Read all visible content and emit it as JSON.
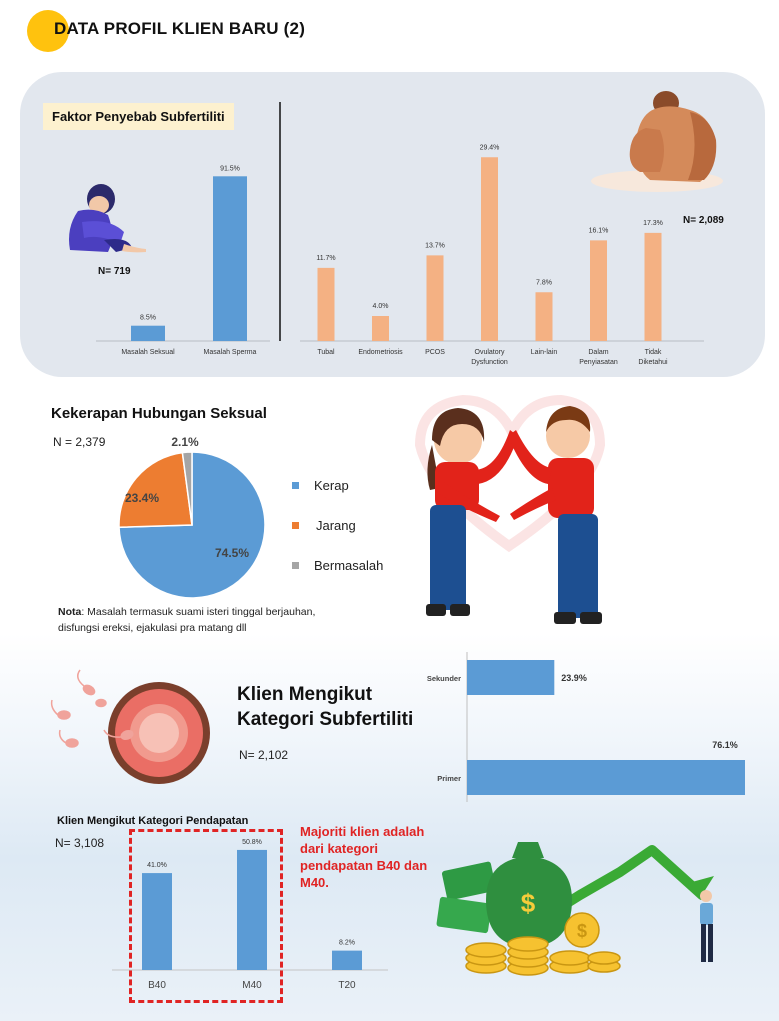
{
  "page": {
    "title": "DATA PROFIL KLIEN BARU (2)"
  },
  "colors": {
    "blue": "#5b9bd5",
    "orange": "#ed7d31",
    "peach": "#f4b183",
    "grey": "#a5a5a5",
    "red": "#e02424",
    "accent": "#ffc20e"
  },
  "icons": [
    "sad-man-illustration-icon",
    "sad-woman-illustration-icon",
    "heart-couple-illustration-icon",
    "sperm-egg-illustration-icon",
    "money-growth-illustration-icon"
  ],
  "chart_data": [
    {
      "id": "faktor-lelaki",
      "type": "bar",
      "title": "Faktor Penyebab Subfertiliti",
      "n_label": "N= 719",
      "categories": [
        "Masalah Seksual",
        "Masalah Sperma"
      ],
      "values": [
        8.5,
        91.5
      ],
      "value_labels": [
        "8.5%",
        "91.5%"
      ],
      "ylim": [
        0,
        100
      ],
      "color": "#5b9bd5"
    },
    {
      "id": "faktor-wanita",
      "type": "bar",
      "n_label": "N= 2,089",
      "categories": [
        [
          "Tubal"
        ],
        [
          "Endometriosis"
        ],
        [
          "PCOS"
        ],
        [
          "Ovulatory",
          "Dysfunction"
        ],
        [
          "Lain-lain"
        ],
        [
          "Dalam",
          "Penyiasatan"
        ],
        [
          "Tidak",
          "Diketahui"
        ]
      ],
      "values": [
        11.7,
        4.0,
        13.7,
        29.4,
        7.8,
        16.1,
        17.3
      ],
      "value_labels": [
        "11.7%",
        "4.0%",
        "13.7%",
        "29.4%",
        "7.8%",
        "16.1%",
        "17.3%"
      ],
      "ylim": [
        0,
        32
      ],
      "color": "#f4b183"
    },
    {
      "id": "kekerapan",
      "type": "pie",
      "title": "Kekerapan Hubungan Seksual",
      "n_label": "N = 2,379",
      "slices": [
        {
          "name": "Kerap",
          "value": 74.5,
          "label": "74.5%",
          "color": "#5b9bd5"
        },
        {
          "name": "Jarang",
          "value": 23.4,
          "label": "23.4%",
          "color": "#ed7d31"
        },
        {
          "name": "Bermasalah",
          "value": 2.1,
          "label": "2.1%",
          "color": "#a5a5a5"
        }
      ],
      "legend": "right"
    },
    {
      "id": "kategori-subfertiliti",
      "type": "bar",
      "orientation": "horizontal",
      "title": "Klien Mengikut Kategori Subfertiliti",
      "title_lines": [
        "Klien Mengikut",
        "Kategori Subfertiliti"
      ],
      "n_label": "N= 2,102",
      "categories": [
        "Sekunder",
        "Primer"
      ],
      "values": [
        23.9,
        76.1
      ],
      "value_labels": [
        "23.9%",
        "76.1%"
      ],
      "xlim": [
        0,
        76.1
      ],
      "color": "#5b9bd5"
    },
    {
      "id": "kategori-pendapatan",
      "type": "bar",
      "title": "Klien Mengikut Kategori Pendapatan",
      "n_label": "N= 3,108",
      "categories": [
        "B40",
        "M40",
        "T20"
      ],
      "values": [
        41.0,
        50.8,
        8.2
      ],
      "value_labels": [
        "41.0%",
        "50.8%",
        "8.2%"
      ],
      "ylim": [
        0,
        55
      ],
      "color": "#5b9bd5"
    }
  ],
  "pie_note": {
    "label": "Nota",
    "text": ": Masalah termasuk suami isteri tinggal berjauhan, disfungsi ereksi, ejakulasi pra matang dll"
  },
  "callout": {
    "text": "Majoriti klien adalah dari kategori pendapatan B40 dan M40."
  }
}
